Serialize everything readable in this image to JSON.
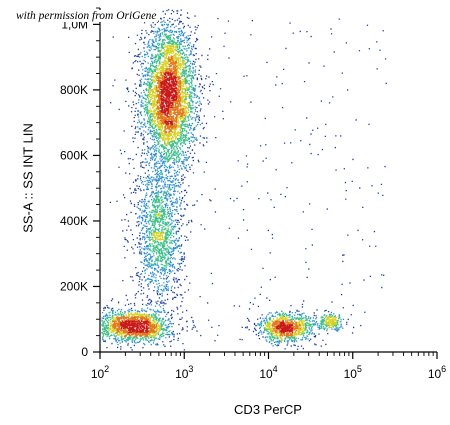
{
  "watermark": "with permission from OriGene",
  "chart_data": {
    "type": "scatter",
    "subtype": "flow-cytometry-density-dot-plot",
    "xlabel": "CD3 PerCP",
    "ylabel": "SS-A :: SS INT LIN",
    "x_scale": "log",
    "x_range": [
      100,
      1000000
    ],
    "x_ticks": [
      {
        "value": 100,
        "base": "10",
        "exp": "2"
      },
      {
        "value": 1000,
        "base": "10",
        "exp": "3"
      },
      {
        "value": 10000,
        "base": "10",
        "exp": "4"
      },
      {
        "value": 100000,
        "base": "10",
        "exp": "5"
      },
      {
        "value": 1000000,
        "base": "10",
        "exp": "6"
      }
    ],
    "y_scale": "linear",
    "y_range": [
      0,
      1050000
    ],
    "y_ticks": [
      {
        "value": 0,
        "label": "0"
      },
      {
        "value": 200000,
        "label": "200K"
      },
      {
        "value": 400000,
        "label": "400K"
      },
      {
        "value": 600000,
        "label": "600K"
      },
      {
        "value": 800000,
        "label": "800K"
      },
      {
        "value": 1000000,
        "label": "1,0M"
      }
    ],
    "color_scale": [
      "#1f3f9e",
      "#2f8fd0",
      "#3fbf8a",
      "#d8d020",
      "#e07818",
      "#c81818"
    ],
    "populations": [
      {
        "id": "cd3-neg-high-ss",
        "x_center": 650,
        "y_center": 780000,
        "x_spread_log": 0.16,
        "y_spread": 110000,
        "events": 4200
      },
      {
        "id": "cd3-neg-mid-ss",
        "x_center": 500,
        "y_center": 370000,
        "x_spread_log": 0.14,
        "y_spread": 110000,
        "events": 1500
      },
      {
        "id": "cd3-neg-low-ss",
        "x_center": 250,
        "y_center": 80000,
        "x_spread_log": 0.22,
        "y_spread": 25000,
        "events": 1600
      },
      {
        "id": "cd3-pos-low-ss",
        "x_center": 16000,
        "y_center": 75000,
        "x_spread_log": 0.17,
        "y_spread": 22000,
        "events": 1000
      },
      {
        "id": "cd3-pos-low-ss-tail",
        "x_center": 55000,
        "y_center": 92000,
        "x_spread_log": 0.08,
        "y_spread": 12000,
        "events": 220
      }
    ],
    "background_events": 320,
    "grid": false,
    "legend": "none"
  }
}
